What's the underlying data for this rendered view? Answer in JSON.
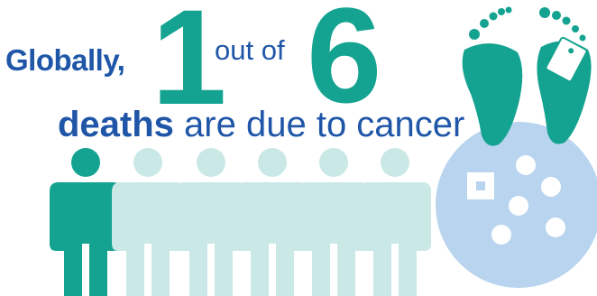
{
  "headline": {
    "prefix": "Globally,",
    "numerator": "1",
    "connector": "out of",
    "denominator": "6",
    "emphasis": "deaths",
    "suffix": " are due to cancer"
  },
  "people": {
    "highlighted": 1,
    "total": 6
  },
  "icons": [
    "person-icon",
    "feet-icon",
    "toe-tag-icon",
    "cancer-cell-icon"
  ],
  "colors": {
    "navy": "#1f56a8",
    "teal": "#14a390",
    "light_teal": "#c9e8e6",
    "cell": "#b8d4ee"
  }
}
